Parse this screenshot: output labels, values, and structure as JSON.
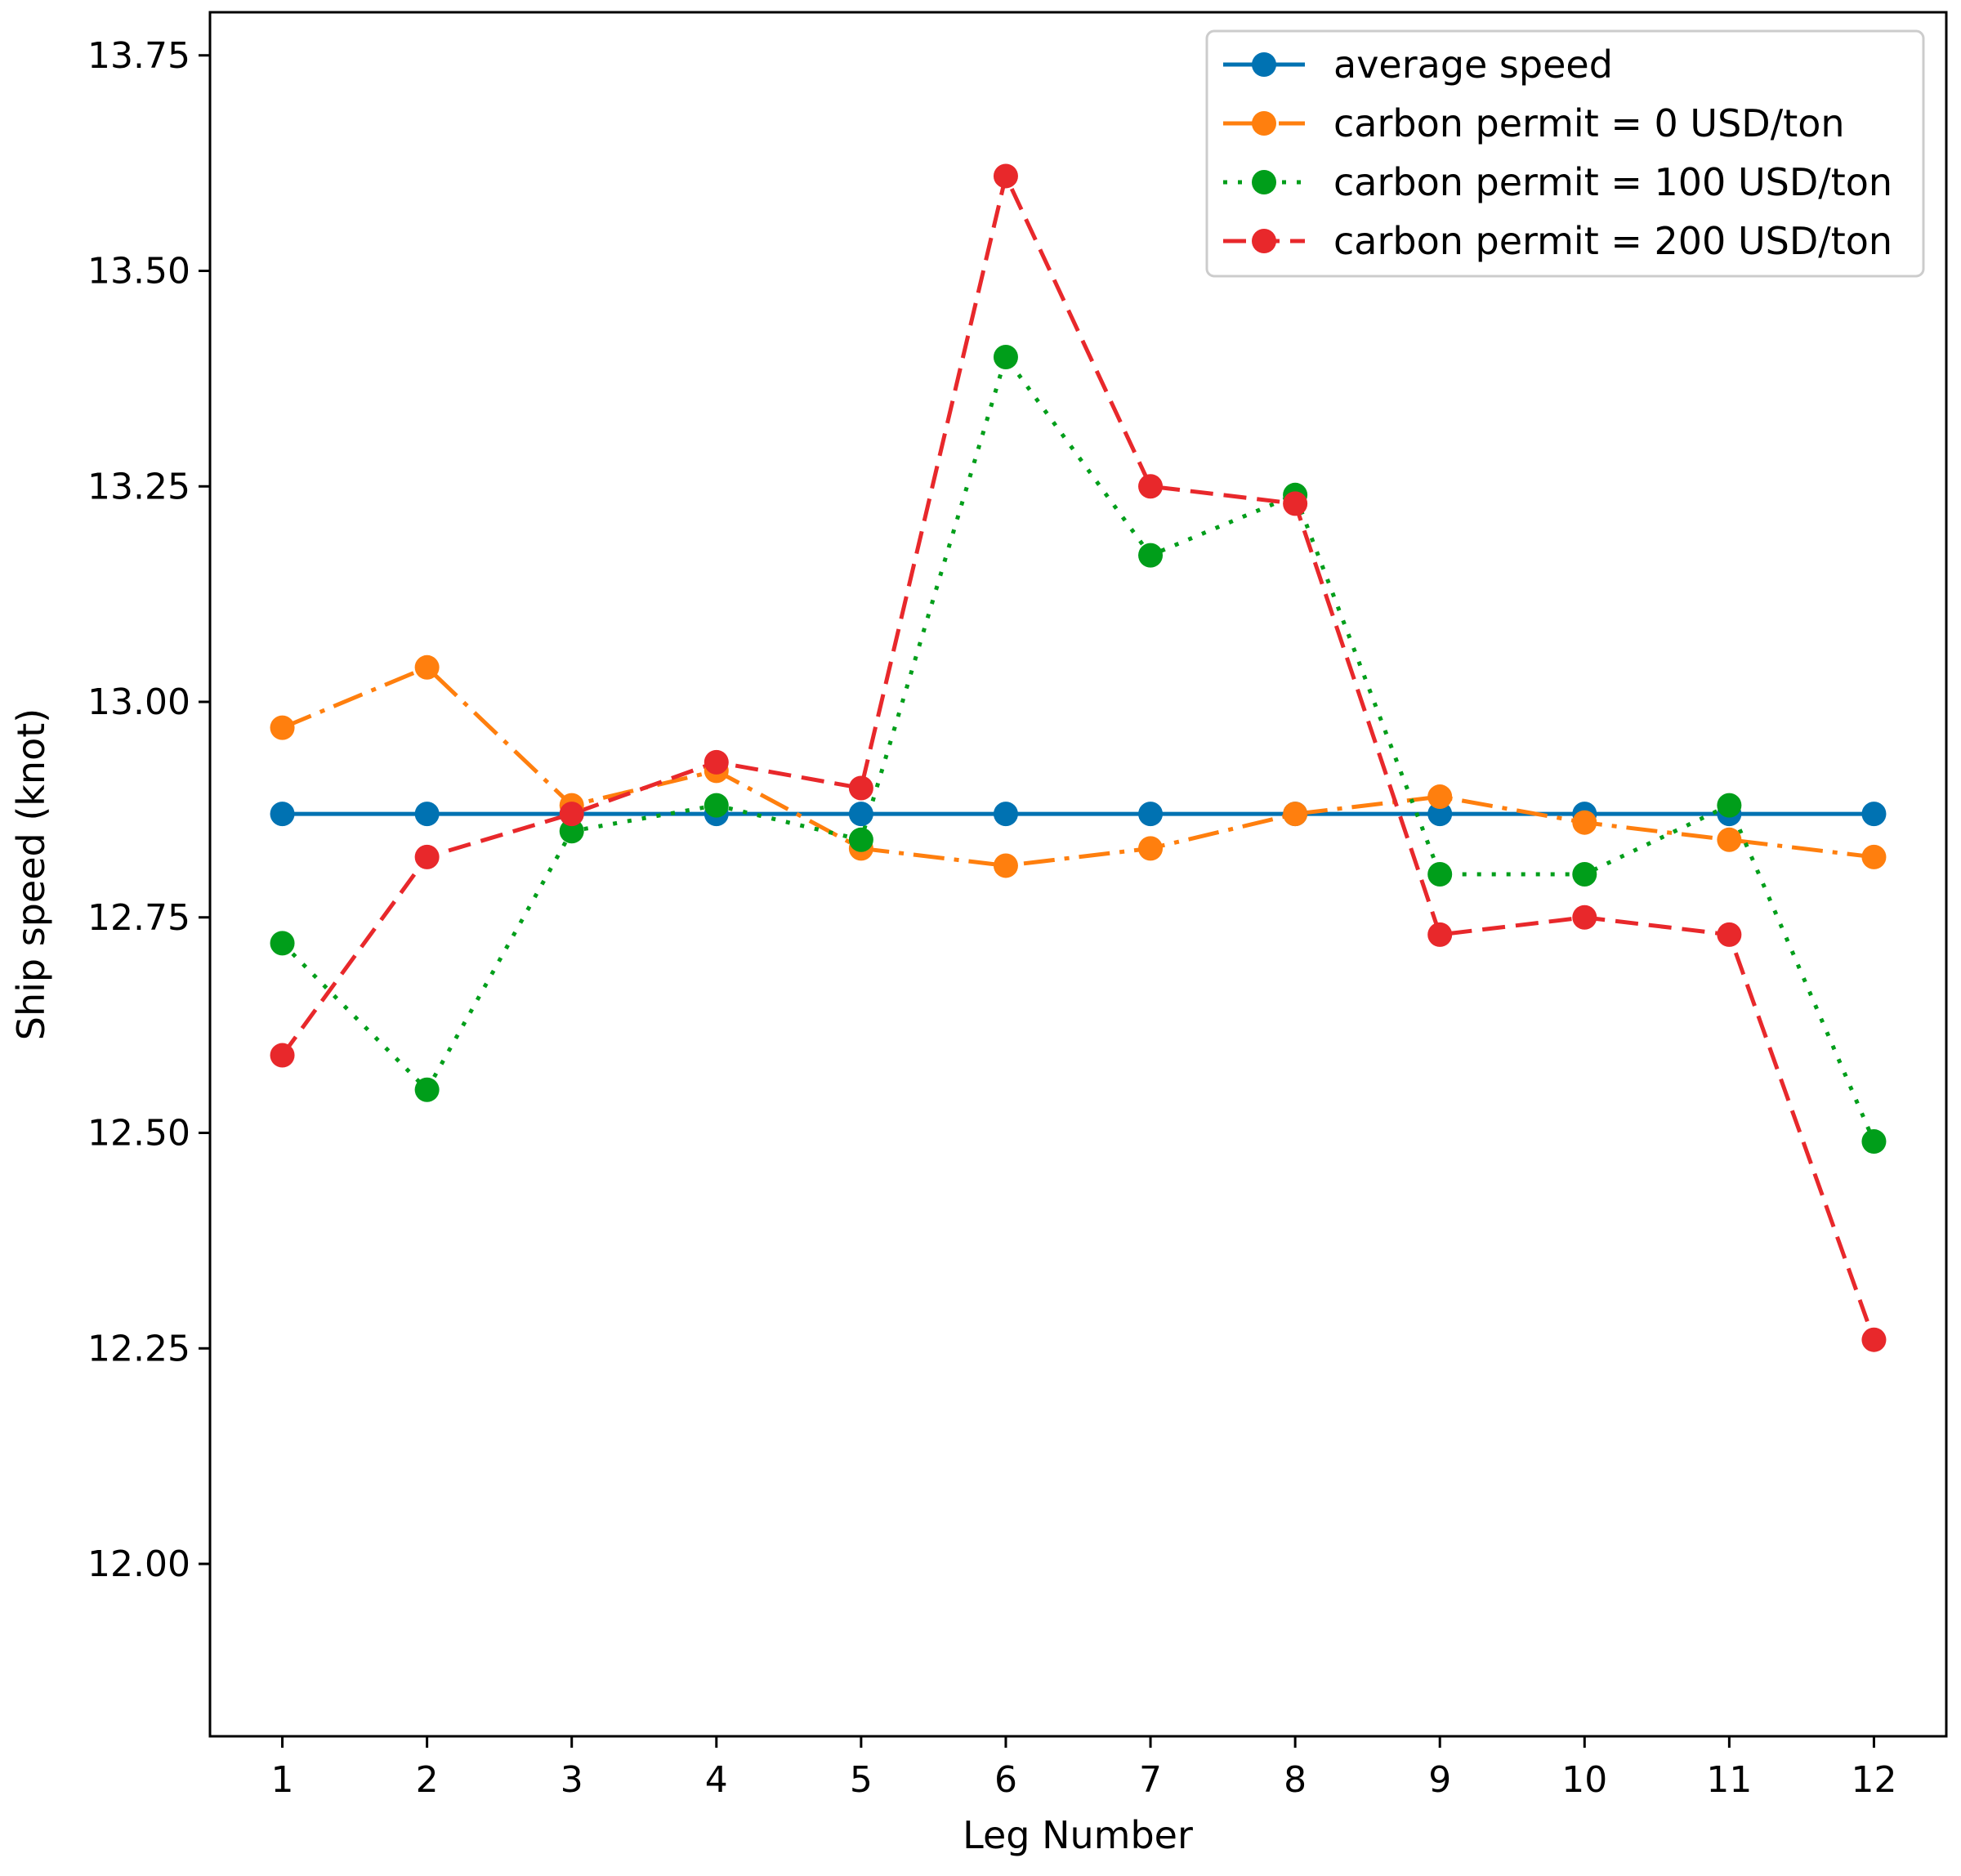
{
  "chart_data": {
    "type": "line",
    "title": "",
    "xlabel": "Leg Number",
    "ylabel": "Ship speed (knot)",
    "x": [
      1,
      2,
      3,
      4,
      5,
      6,
      7,
      8,
      9,
      10,
      11,
      12
    ],
    "x_ticks": [
      "1",
      "2",
      "3",
      "4",
      "5",
      "6",
      "7",
      "8",
      "9",
      "10",
      "11",
      "12"
    ],
    "xlim": [
      0.5,
      12.5
    ],
    "ylim": [
      11.8,
      13.8
    ],
    "y_ticks": [
      "12.00",
      "12.25",
      "12.50",
      "12.75",
      "13.00",
      "13.25",
      "13.50",
      "13.75"
    ],
    "grid": false,
    "legend_position": "top-right",
    "series": [
      {
        "name": "average speed",
        "color": "#0072b2",
        "line_style": "solid",
        "values": [
          12.87,
          12.87,
          12.87,
          12.87,
          12.87,
          12.87,
          12.87,
          12.87,
          12.87,
          12.87,
          12.87,
          12.87
        ]
      },
      {
        "name": "carbon permit = 0 USD/ton",
        "color": "#ff7f0e",
        "line_style": "dash-dot",
        "values": [
          12.97,
          13.04,
          12.88,
          12.92,
          12.83,
          12.81,
          12.83,
          12.87,
          12.89,
          12.86,
          12.84,
          12.82
        ]
      },
      {
        "name": "carbon permit = 100 USD/ton",
        "color": "#009e1a",
        "line_style": "dotted",
        "values": [
          12.72,
          12.55,
          12.85,
          12.88,
          12.84,
          13.4,
          13.17,
          13.24,
          12.8,
          12.8,
          12.88,
          12.49
        ]
      },
      {
        "name": "carbon permit = 200 USD/ton",
        "color": "#e8282b",
        "line_style": "dashed",
        "values": [
          12.59,
          12.82,
          12.87,
          12.93,
          12.9,
          13.61,
          13.25,
          13.23,
          12.73,
          12.75,
          12.73,
          12.26
        ]
      }
    ]
  }
}
